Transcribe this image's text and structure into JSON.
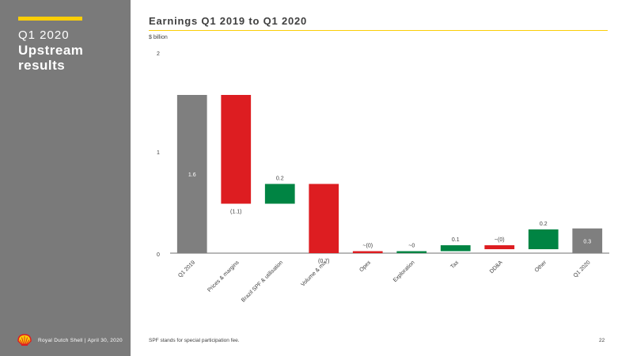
{
  "sidebar": {
    "period": "Q1 2020",
    "title": "Upstream results",
    "footer": "Royal Dutch Shell | April 30, 2020",
    "colors": {
      "background": "#7a7a7a",
      "accent": "#fbce07"
    }
  },
  "header": {
    "title": "Earnings Q1 2019 to Q1 2020",
    "unit": "$ billion"
  },
  "footer": {
    "note": "SPF stands for special participation fee.",
    "page": "22"
  },
  "chart_data": {
    "type": "bar",
    "subtype": "waterfall",
    "title": "Earnings Q1 2019 to Q1 2020",
    "ylabel": "$ billion",
    "ylim": [
      0,
      2
    ],
    "yticks": [
      "0",
      "1",
      "2"
    ],
    "grid": false,
    "colors": {
      "total": "#7f7f7f",
      "negative": "#dd1d21",
      "positive": "#008443",
      "label_on_bar": "#ffffff",
      "text": "#404040"
    },
    "categories": [
      "Q1 2019",
      "Prices & margins",
      "Brazil SPF & utilisation",
      "Volume & mix",
      "Opex",
      "Exploration",
      "Tax",
      "DD&A",
      "Other",
      "Q1 2020"
    ],
    "bars": [
      {
        "kind": "total",
        "start": 0,
        "end": 1.6,
        "label": "1.6"
      },
      {
        "kind": "negative",
        "start": 1.6,
        "end": 0.5,
        "label": "(1.1)"
      },
      {
        "kind": "positive",
        "start": 0.5,
        "end": 0.7,
        "label": "0.2"
      },
      {
        "kind": "negative",
        "start": 0.7,
        "end": 0.0,
        "label": "(0.7)"
      },
      {
        "kind": "negative",
        "start": 0.02,
        "end": 0.0,
        "label": "~(0)"
      },
      {
        "kind": "positive",
        "start": 0.0,
        "end": 0.02,
        "label": "~0"
      },
      {
        "kind": "positive",
        "start": 0.02,
        "end": 0.08,
        "label": "0.1"
      },
      {
        "kind": "negative",
        "start": 0.08,
        "end": 0.04,
        "label": "~(0)"
      },
      {
        "kind": "positive",
        "start": 0.04,
        "end": 0.24,
        "label": "0.2"
      },
      {
        "kind": "total",
        "start": 0,
        "end": 0.25,
        "label": "0.3"
      }
    ]
  }
}
